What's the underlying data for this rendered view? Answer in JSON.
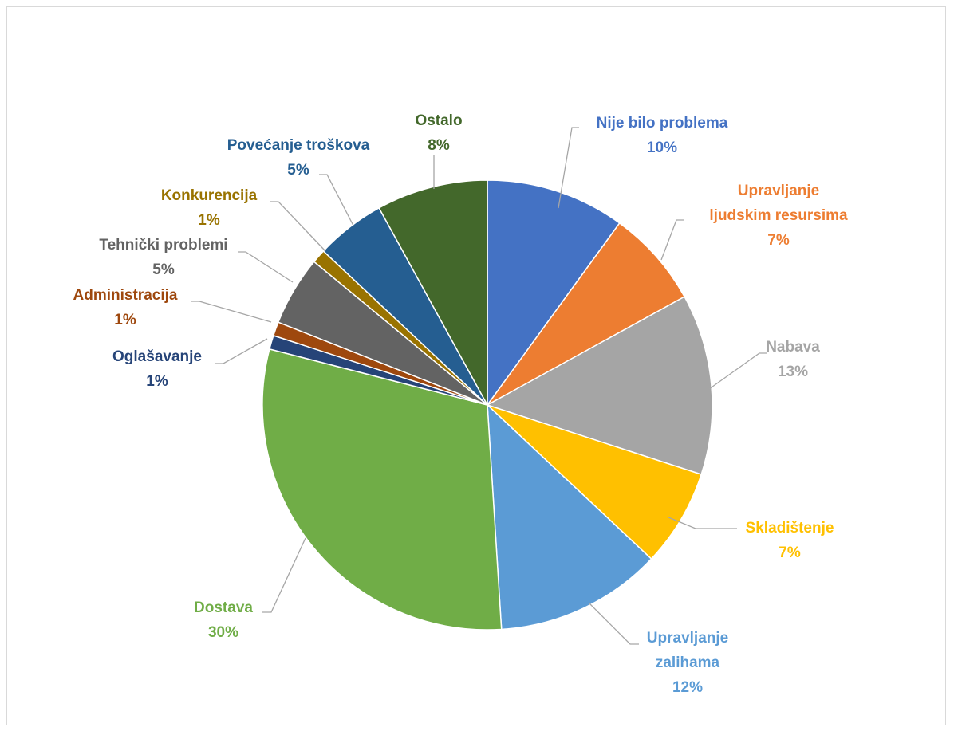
{
  "chart_data": {
    "type": "pie",
    "title": "",
    "start_angle_deg": 0,
    "direction": "clockwise",
    "slices": [
      {
        "label": "Nije bilo problema",
        "lines": [
          "Nije bilo problema"
        ],
        "value": 10,
        "percent_label": "10%",
        "color": "#4472C4"
      },
      {
        "label": "Upravljanje ljudskim resursima",
        "lines": [
          "Upravljanje",
          "ljudskim resursima"
        ],
        "value": 7,
        "percent_label": "7%",
        "color": "#ED7D31"
      },
      {
        "label": "Nabava",
        "lines": [
          "Nabava"
        ],
        "value": 13,
        "percent_label": "13%",
        "color": "#A5A5A5"
      },
      {
        "label": "Skladištenje",
        "lines": [
          "Skladištenje"
        ],
        "value": 7,
        "percent_label": "7%",
        "color": "#FFC000"
      },
      {
        "label": "Upravljanje zalihama",
        "lines": [
          "Upravljanje",
          "zalihama"
        ],
        "value": 12,
        "percent_label": "12%",
        "color": "#5B9BD5"
      },
      {
        "label": "Dostava",
        "lines": [
          "Dostava"
        ],
        "value": 30,
        "percent_label": "30%",
        "color": "#70AD47"
      },
      {
        "label": "Oglašavanje",
        "lines": [
          "Oglašavanje"
        ],
        "value": 1,
        "percent_label": "1%",
        "color": "#264478"
      },
      {
        "label": "Administracija",
        "lines": [
          "Administracija"
        ],
        "value": 1,
        "percent_label": "1%",
        "color": "#9E480E"
      },
      {
        "label": "Tehnički problemi",
        "lines": [
          "Tehnički problemi"
        ],
        "value": 5,
        "percent_label": "5%",
        "color": "#636363"
      },
      {
        "label": "Konkurencija",
        "lines": [
          "Konkurencija"
        ],
        "value": 1,
        "percent_label": "1%",
        "color": "#997300"
      },
      {
        "label": "Povećanje troškova",
        "lines": [
          "Povećanje troškova"
        ],
        "value": 5,
        "percent_label": "5%",
        "color": "#255E91"
      },
      {
        "label": "Ostalo",
        "lines": [
          "Ostalo"
        ],
        "value": 8,
        "percent_label": "8%",
        "color": "#43682B"
      }
    ],
    "label_colors": {
      "Nije bilo problema": "#4472C4",
      "Upravljanje ljudskim resursima": "#ED7D31",
      "Nabava": "#A5A5A5",
      "Skladištenje": "#FFC000",
      "Upravljanje zalihama": "#5B9BD5",
      "Dostava": "#70AD47",
      "Oglašavanje": "#264478",
      "Administracija": "#9E480E",
      "Tehnički problemi": "#636363",
      "Konkurencija": "#997300",
      "Povećanje troškova": "#255E91",
      "Ostalo": "#43682B"
    },
    "legend": "none",
    "data_labels": "outside with leader lines"
  }
}
